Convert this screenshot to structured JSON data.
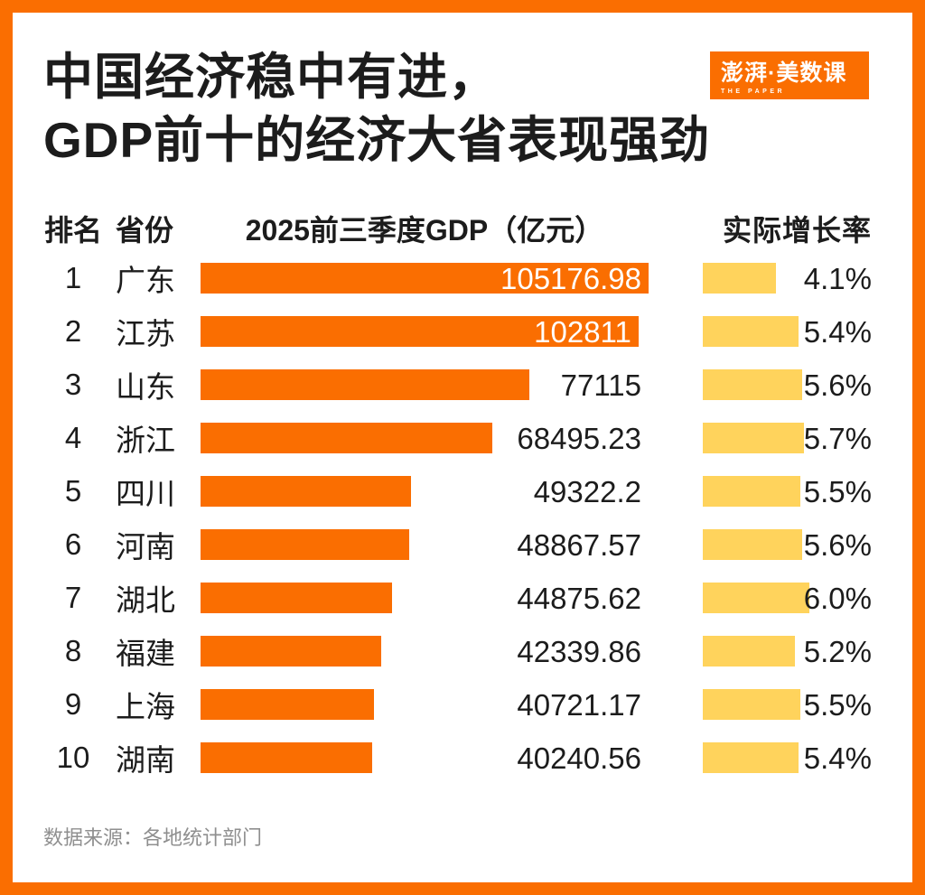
{
  "title": {
    "line1": "中国经济稳中有进，",
    "line2": "GDP前十的经济大省表现强劲"
  },
  "logo": {
    "main": "澎湃·美数课",
    "sub": "THE PAPER"
  },
  "columns": {
    "rank": "排名",
    "province": "省份",
    "gdp": "2025前三季度GDP（亿元）",
    "growth": "实际增长率"
  },
  "table": {
    "rows": [
      {
        "rank": "1",
        "province": "广东",
        "gdp": 105176.98,
        "gdp_label": "105176.98",
        "growth": 4.1,
        "growth_label": "4.1%",
        "value_inside": true
      },
      {
        "rank": "2",
        "province": "江苏",
        "gdp": 102811,
        "gdp_label": "102811",
        "growth": 5.4,
        "growth_label": "5.4%",
        "value_inside": true
      },
      {
        "rank": "3",
        "province": "山东",
        "gdp": 77115,
        "gdp_label": "77115",
        "growth": 5.6,
        "growth_label": "5.6%",
        "value_inside": false
      },
      {
        "rank": "4",
        "province": "浙江",
        "gdp": 68495.23,
        "gdp_label": "68495.23",
        "growth": 5.7,
        "growth_label": "5.7%",
        "value_inside": false
      },
      {
        "rank": "5",
        "province": "四川",
        "gdp": 49322.2,
        "gdp_label": "49322.2",
        "growth": 5.5,
        "growth_label": "5.5%",
        "value_inside": false
      },
      {
        "rank": "6",
        "province": "河南",
        "gdp": 48867.57,
        "gdp_label": "48867.57",
        "growth": 5.6,
        "growth_label": "5.6%",
        "value_inside": false
      },
      {
        "rank": "7",
        "province": "湖北",
        "gdp": 44875.62,
        "gdp_label": "44875.62",
        "growth": 6.0,
        "growth_label": "6.0%",
        "value_inside": false
      },
      {
        "rank": "8",
        "province": "福建",
        "gdp": 42339.86,
        "gdp_label": "42339.86",
        "growth": 5.2,
        "growth_label": "5.2%",
        "value_inside": false
      },
      {
        "rank": "9",
        "province": "上海",
        "gdp": 40721.17,
        "gdp_label": "40721.17",
        "growth": 5.5,
        "growth_label": "5.5%",
        "value_inside": false
      },
      {
        "rank": "10",
        "province": "湖南",
        "gdp": 40240.56,
        "gdp_label": "40240.56",
        "growth": 5.4,
        "growth_label": "5.4%",
        "value_inside": false
      }
    ]
  },
  "footer": {
    "source": "数据来源：各地统计部门"
  },
  "colors": {
    "accent_orange": "#FA6E01",
    "bar_yellow": "#FFD35C",
    "text_dark": "#1C1C1C",
    "text_gray": "#8F8F8F"
  },
  "chart_data": {
    "type": "bar",
    "orientation": "horizontal",
    "title": "中国经济稳中有进，GDP前十的经济大省表现强劲",
    "categories": [
      "广东",
      "江苏",
      "山东",
      "浙江",
      "四川",
      "河南",
      "湖北",
      "福建",
      "上海",
      "湖南"
    ],
    "series": [
      {
        "name": "2025前三季度GDP（亿元）",
        "values": [
          105176.98,
          102811,
          77115,
          68495.23,
          49322.2,
          48867.57,
          44875.62,
          42339.86,
          40721.17,
          40240.56
        ]
      },
      {
        "name": "实际增长率（%）",
        "values": [
          4.1,
          5.4,
          5.6,
          5.7,
          5.5,
          5.6,
          6.0,
          5.2,
          5.5,
          5.4
        ]
      }
    ],
    "xlabel": "",
    "ylabel": "",
    "xlim_gdp": [
      0,
      105176.98
    ],
    "xlim_growth": [
      0,
      6.0
    ],
    "grid": false,
    "legend_position": "none",
    "annotations": "GDP值标注于条形内部（前两名为白色文字）或条形右侧，增长率标注于黄色条形右侧"
  }
}
